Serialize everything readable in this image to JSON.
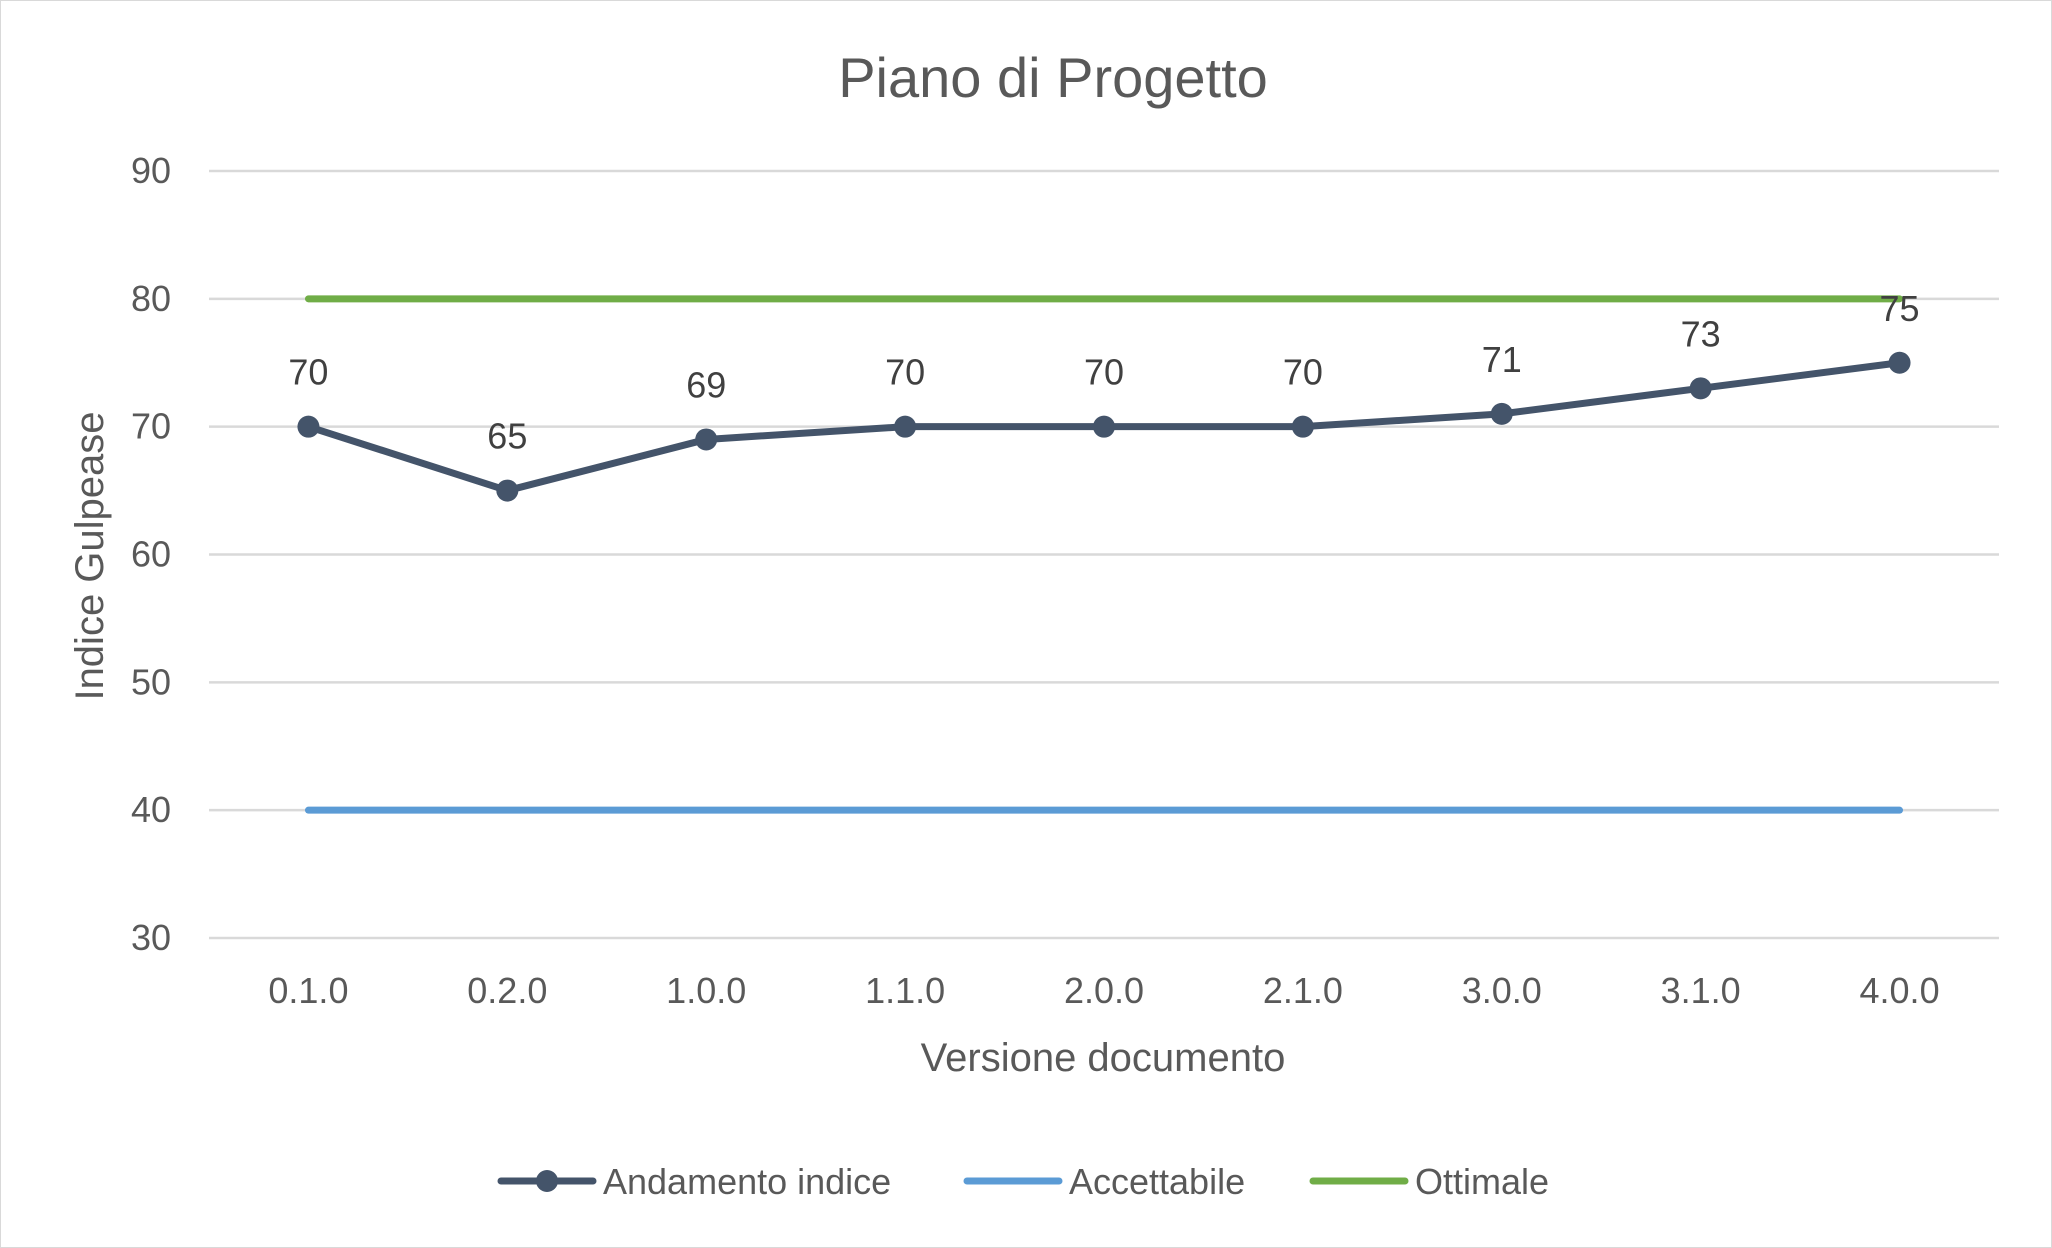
{
  "chart_data": {
    "type": "line",
    "title": "Piano di Progetto",
    "xlabel": "Versione documento",
    "ylabel": "Indice Gulpease",
    "categories": [
      "0.1.0",
      "0.2.0",
      "1.0.0",
      "1.1.0",
      "2.0.0",
      "2.1.0",
      "3.0.0",
      "3.1.0",
      "4.0.0"
    ],
    "ylim": [
      30,
      90
    ],
    "yticks": [
      "30",
      "40",
      "50",
      "60",
      "70",
      "80",
      "90"
    ],
    "grid": true,
    "legend_position": "bottom",
    "series": [
      {
        "name": "Andamento indice",
        "values": [
          70,
          65,
          69,
          70,
          70,
          70,
          71,
          73,
          75
        ],
        "data_labels": [
          "70",
          "65",
          "69",
          "70",
          "70",
          "70",
          "71",
          "73",
          "75"
        ],
        "color": "#44546a",
        "markers": true
      },
      {
        "name": "Accettabile",
        "values": [
          40,
          40,
          40,
          40,
          40,
          40,
          40,
          40,
          40
        ],
        "color": "#5b9bd5",
        "markers": false
      },
      {
        "name": "Ottimale",
        "values": [
          80,
          80,
          80,
          80,
          80,
          80,
          80,
          80,
          80
        ],
        "color": "#70ad47",
        "markers": false
      }
    ]
  }
}
